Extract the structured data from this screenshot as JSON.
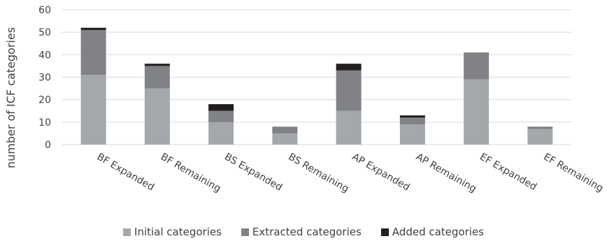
{
  "chart_data": {
    "type": "bar",
    "stacked": true,
    "title": "",
    "xlabel": "",
    "ylabel": "number of ICF categories",
    "ylim": [
      0,
      60
    ],
    "yticks": [
      0,
      10,
      20,
      30,
      40,
      50,
      60
    ],
    "grid": true,
    "legend_position": "bottom",
    "categories": [
      "BF Expanded",
      "BF Remaining",
      "BS Expanded",
      "BS Remaining",
      "AP Expanded",
      "AP Remaining",
      "EF Expanded",
      "EF Remaining"
    ],
    "series": [
      {
        "name": "Initial categories",
        "color": "#a5a8aa",
        "values": [
          31,
          25,
          10,
          5,
          15,
          9,
          29,
          7
        ]
      },
      {
        "name": "Extracted categories",
        "color": "#808285",
        "values": [
          20,
          10,
          5,
          3,
          18,
          3,
          12,
          1
        ]
      },
      {
        "name": "Added categories",
        "color": "#231f20",
        "values": [
          1,
          1,
          3,
          0,
          3,
          1,
          0,
          0
        ]
      }
    ]
  }
}
